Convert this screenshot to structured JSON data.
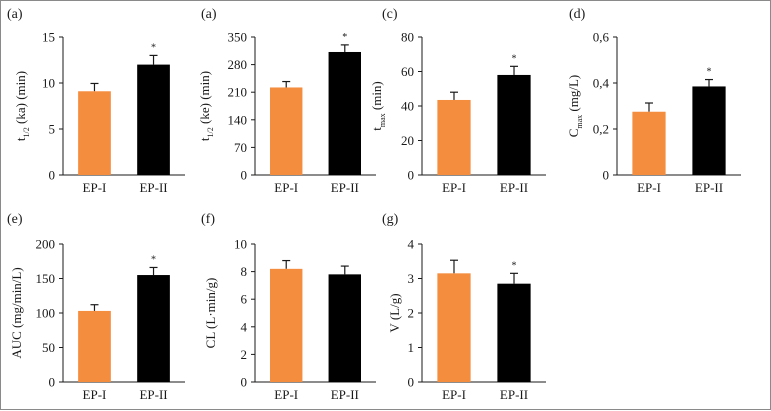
{
  "colors": {
    "ep1": "#f58d3f",
    "ep2": "#000000",
    "axis": "#1a1a1a"
  },
  "chart_data": [
    {
      "type": "bar",
      "panel_label": "(a)",
      "categories": [
        "EP-I",
        "EP-II"
      ],
      "values": [
        9.1,
        12.0
      ],
      "errors": [
        0.85,
        1.0
      ],
      "ylabel_main": "t",
      "ylabel_sub": "1/2",
      "ylabel_tail": "(ka) (min)",
      "ylim": [
        0,
        15
      ],
      "yticks": [
        "0",
        "5",
        "10",
        "15"
      ],
      "yticks_num": [
        0,
        5,
        10,
        15
      ],
      "significance": [
        "",
        "*"
      ]
    },
    {
      "type": "bar",
      "panel_label": "(a)",
      "categories": [
        "EP-I",
        "EP-II"
      ],
      "values": [
        222,
        312
      ],
      "errors": [
        15,
        18
      ],
      "ylabel_main": "t",
      "ylabel_sub": "1/2",
      "ylabel_tail": "(ke) (min)",
      "ylim": [
        0,
        350
      ],
      "yticks": [
        "0",
        "70",
        "140",
        "210",
        "280",
        "350"
      ],
      "yticks_num": [
        0,
        70,
        140,
        210,
        280,
        350
      ],
      "significance": [
        "",
        "*"
      ]
    },
    {
      "type": "bar",
      "panel_label": "(c)",
      "categories": [
        "EP-I",
        "EP-II"
      ],
      "values": [
        43.5,
        58.0
      ],
      "errors": [
        4.5,
        5.0
      ],
      "ylabel_main": "t",
      "ylabel_sub": "max",
      "ylabel_tail": "(min)",
      "ylim": [
        0,
        80
      ],
      "yticks": [
        "0",
        "20",
        "40",
        "60",
        "80"
      ],
      "yticks_num": [
        0,
        20,
        40,
        60,
        80
      ],
      "significance": [
        "",
        "*"
      ]
    },
    {
      "type": "bar",
      "panel_label": "(d)",
      "categories": [
        "EP-I",
        "EP-II"
      ],
      "values": [
        0.275,
        0.385
      ],
      "errors": [
        0.038,
        0.03
      ],
      "ylabel_main": "C",
      "ylabel_sub": "max",
      "ylabel_tail": "(mg/L)",
      "ylim": [
        0,
        0.6
      ],
      "yticks": [
        "0",
        "0,2",
        "0,4",
        "0,6"
      ],
      "yticks_num": [
        0,
        0.2,
        0.4,
        0.6
      ],
      "significance": [
        "",
        "*"
      ]
    },
    {
      "type": "bar",
      "panel_label": "(e)",
      "categories": [
        "EP-I",
        "EP-II"
      ],
      "values": [
        103,
        155
      ],
      "errors": [
        9,
        11
      ],
      "ylabel_main": "AUC (mg/min/L)",
      "ylabel_sub": "",
      "ylabel_tail": "",
      "ylim": [
        0,
        200
      ],
      "yticks": [
        "0",
        "50",
        "100",
        "150",
        "200"
      ],
      "yticks_num": [
        0,
        50,
        100,
        150,
        200
      ],
      "significance": [
        "",
        "*"
      ]
    },
    {
      "type": "bar",
      "panel_label": "(f)",
      "categories": [
        "EP-I",
        "EP-II"
      ],
      "values": [
        8.2,
        7.8
      ],
      "errors": [
        0.6,
        0.6
      ],
      "ylabel_main": "CL (L·min/g)",
      "ylabel_sub": "",
      "ylabel_tail": "",
      "ylim": [
        0,
        10
      ],
      "yticks": [
        "0",
        "2",
        "4",
        "6",
        "8",
        "10"
      ],
      "yticks_num": [
        0,
        2,
        4,
        6,
        8,
        10
      ],
      "significance": [
        "",
        ""
      ]
    },
    {
      "type": "bar",
      "panel_label": "(g)",
      "categories": [
        "EP-I",
        "EP-II"
      ],
      "values": [
        3.15,
        2.85
      ],
      "errors": [
        0.38,
        0.3
      ],
      "ylabel_main": "V (L/g)",
      "ylabel_sub": "",
      "ylabel_tail": "",
      "ylim": [
        0,
        4
      ],
      "yticks": [
        "0",
        "1",
        "2",
        "3",
        "4"
      ],
      "yticks_num": [
        0,
        1,
        2,
        3,
        4
      ],
      "significance": [
        "",
        "*"
      ]
    }
  ]
}
